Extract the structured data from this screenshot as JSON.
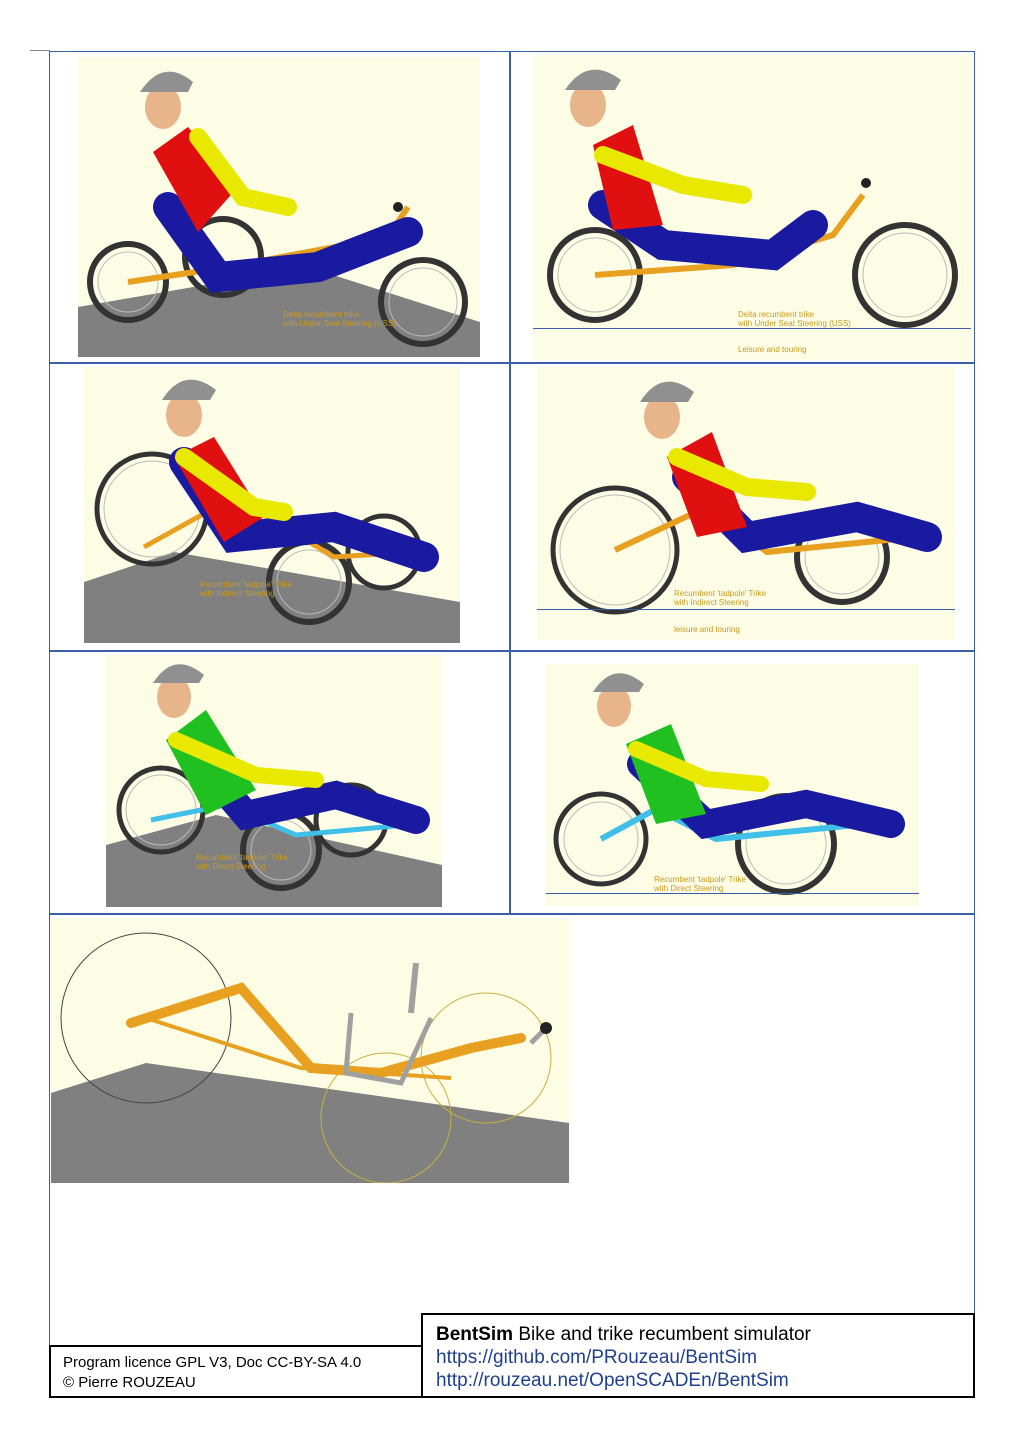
{
  "panels": [
    {
      "id": "p1",
      "caption": "Delta recumbent trike\nwith Under Seat Steering (USS)",
      "remark": "",
      "shirt": "#e01010",
      "shirt2": "#e8e800",
      "frame_color": "#e8a020"
    },
    {
      "id": "p2",
      "caption": "Delta recumbent trike\nwith Under Seat Steering (USS)",
      "remark": "Leisure and touring",
      "shirt": "#e01010",
      "shirt2": "#e8e800",
      "frame_color": "#e8a020"
    },
    {
      "id": "p3",
      "caption": "Recumbent 'tadpole' Trike\nwith Indirect Steering",
      "remark": "",
      "shirt": "#e01010",
      "shirt2": "#e8e800",
      "frame_color": "#e8a020"
    },
    {
      "id": "p4",
      "caption": "Recumbent 'tadpole' Trike\nwith Indirect Steering",
      "remark": "leisure and touring",
      "shirt": "#e01010",
      "shirt2": "#e8e800",
      "frame_color": "#e8a020"
    },
    {
      "id": "p5",
      "caption": "Recumbent 'tadpole' Trike\nwith Direct Steering",
      "remark": "",
      "shirt": "#20c020",
      "shirt2": "#e8e800",
      "frame_color": "#40c0e8"
    },
    {
      "id": "p6",
      "caption": "Recumbent 'tadpole' Trike\nwith Direct Steering",
      "remark": "",
      "shirt": "#20c020",
      "shirt2": "#e8e800",
      "frame_color": "#40c0e8"
    }
  ],
  "info": {
    "title_bold": "BentSim",
    "title_rest": " Bike and trike recumbent simulator",
    "url1": "https://github.com/PRouzeau/BentSim",
    "url2": "http://rouzeau.net/OpenSCADEn/BentSim"
  },
  "license": {
    "line1": "Program licence GPL V3, Doc CC-BY-SA 4.0",
    "line2": "© Pierre ROUZEAU"
  },
  "colors": {
    "border": "#3a5fa8",
    "render_bg": "#fdfde6",
    "ground": "#808080",
    "pants": "#1a1aa0",
    "helmet": "#909090",
    "skin": "#e8b48a"
  }
}
